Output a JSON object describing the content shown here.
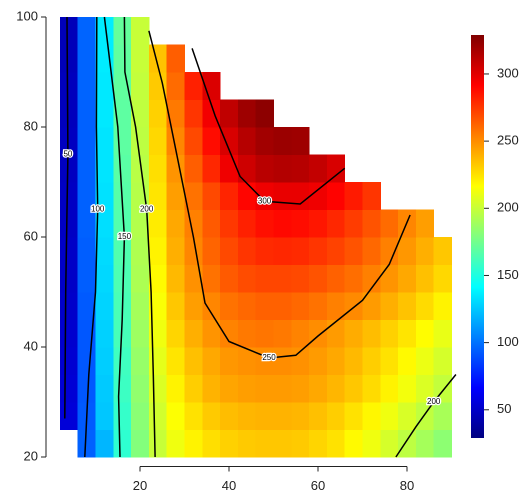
{
  "chart_data": {
    "type": "heatmap",
    "colormap": "jet",
    "x": [
      4,
      8,
      12,
      16,
      20,
      24,
      28,
      32,
      36,
      40,
      44,
      48,
      52,
      56,
      60,
      64,
      68,
      72,
      76,
      80,
      84,
      88
    ],
    "y": [
      22.5,
      27.5,
      32.5,
      37.5,
      42.5,
      47.5,
      52.5,
      57.5,
      62.5,
      67.5,
      72.5,
      77.5,
      82.5,
      87.5,
      92.5,
      97.5
    ],
    "z": [
      [
        null,
        95,
        120,
        155,
        180,
        200,
        212,
        220,
        226,
        230,
        232,
        233,
        233,
        232,
        229,
        225,
        218,
        212,
        204,
        197,
        190,
        183
      ],
      [
        55,
        93,
        125,
        157,
        182,
        203,
        216,
        225,
        232,
        236,
        238,
        239,
        239,
        238,
        235,
        231,
        225,
        219,
        212,
        205,
        198,
        191
      ],
      [
        54,
        92,
        126,
        159,
        184,
        206,
        220,
        231,
        239,
        243,
        245,
        246,
        246,
        245,
        242,
        238,
        233,
        227,
        220,
        213,
        206,
        199
      ],
      [
        53,
        92,
        127,
        160,
        186,
        209,
        224,
        235,
        242,
        247,
        249,
        250,
        250,
        249,
        246,
        242,
        237,
        231,
        225,
        218,
        211,
        204
      ],
      [
        52,
        92,
        128,
        162,
        188,
        212,
        229,
        240,
        248,
        253,
        256,
        257,
        256,
        253,
        250,
        246,
        241,
        236,
        230,
        224,
        217,
        210
      ],
      [
        51,
        93,
        129,
        163,
        190,
        215,
        233,
        245,
        252,
        258,
        261,
        263,
        263,
        261,
        258,
        254,
        251,
        246,
        240,
        234,
        227,
        220
      ],
      [
        50,
        94,
        130,
        164,
        192,
        218,
        237,
        249,
        258,
        265,
        269,
        271,
        271,
        270,
        267,
        263,
        259,
        254,
        248,
        242,
        235,
        228
      ],
      [
        50,
        94,
        131,
        165,
        193,
        220,
        240,
        252,
        262,
        270,
        276,
        279,
        280,
        279,
        276,
        272,
        267,
        261,
        254,
        247,
        240,
        233
      ],
      [
        49,
        95,
        132,
        166,
        194,
        222,
        242,
        254,
        265,
        275,
        282,
        287,
        289,
        288,
        285,
        280,
        274,
        267,
        260,
        252,
        245,
        null
      ],
      [
        49,
        95,
        133,
        167,
        195,
        224,
        245,
        258,
        270,
        281,
        290,
        296,
        298,
        298,
        296,
        291,
        284,
        276,
        null,
        null,
        null,
        null
      ],
      [
        48,
        95,
        134,
        168,
        196,
        226,
        248,
        264,
        280,
        296,
        306,
        312,
        314,
        313,
        309,
        303,
        null,
        null,
        null,
        null,
        null,
        null
      ],
      [
        48,
        95,
        134,
        169,
        197,
        228,
        252,
        270,
        288,
        303,
        313,
        319,
        321,
        320,
        null,
        null,
        null,
        null,
        null,
        null,
        null,
        null
      ],
      [
        47,
        95,
        135,
        169,
        198,
        230,
        256,
        276,
        295,
        310,
        320,
        325,
        null,
        null,
        null,
        null,
        null,
        null,
        null,
        null,
        null,
        null
      ],
      [
        47,
        96,
        135,
        170,
        199,
        232,
        260,
        282,
        302,
        null,
        null,
        null,
        null,
        null,
        null,
        null,
        null,
        null,
        null,
        null,
        null,
        null
      ],
      [
        46,
        96,
        136,
        170,
        200,
        234,
        264,
        null,
        null,
        null,
        null,
        null,
        null,
        null,
        null,
        null,
        null,
        null,
        null,
        null,
        null,
        null
      ],
      [
        46,
        96,
        136,
        171,
        200,
        null,
        null,
        null,
        null,
        null,
        null,
        null,
        null,
        null,
        null,
        null,
        null,
        null,
        null,
        null,
        null,
        null
      ]
    ],
    "xlim": [
      0,
      92
    ],
    "ylim": [
      19,
      100.5
    ],
    "xticks": [
      20,
      40,
      60,
      80
    ],
    "yticks": [
      20,
      40,
      60,
      80,
      100
    ],
    "zlim": [
      29,
      329
    ],
    "zticks": [
      50,
      100,
      150,
      200,
      250,
      300
    ],
    "contour_color": "#000000",
    "contours": [
      {
        "level": 50,
        "x": [
          3.1,
          3.3,
          3.8,
          3.6
        ],
        "y": [
          27,
          50,
          75,
          100
        ]
      },
      {
        "level": 100,
        "x": [
          7.6,
          8.5,
          10,
          10.5,
          10.2,
          10.3
        ],
        "y": [
          20,
          35,
          50,
          65,
          80,
          100
        ]
      },
      {
        "level": 150,
        "x": [
          15.5,
          15.2,
          16,
          16.5,
          15,
          12
        ],
        "y": [
          20,
          31,
          45,
          60,
          80,
          100
        ]
      },
      {
        "level": 200,
        "x": [
          23.4,
          23,
          22.5,
          21.5,
          19,
          16.6,
          16.5
        ],
        "y": [
          20,
          35,
          50,
          65,
          80,
          90,
          100
        ]
      },
      {
        "level": 250,
        "x": [
          22,
          25,
          29,
          32,
          34.6,
          40,
          49,
          55,
          60,
          70,
          76,
          80.7
        ],
        "y": [
          97.5,
          88,
          72,
          60,
          48,
          41,
          38,
          38.5,
          42,
          48.5,
          55,
          64
        ]
      },
      {
        "level": 300,
        "x": [
          31.7,
          36.9,
          42.5,
          48,
          56,
          66
        ],
        "y": [
          94.3,
          82,
          71,
          66.5,
          66,
          72.5
        ]
      },
      {
        "level": 200,
        "x": [
          77.5,
          82,
          86,
          91
        ],
        "y": [
          20,
          25.5,
          30,
          35
        ]
      }
    ]
  }
}
